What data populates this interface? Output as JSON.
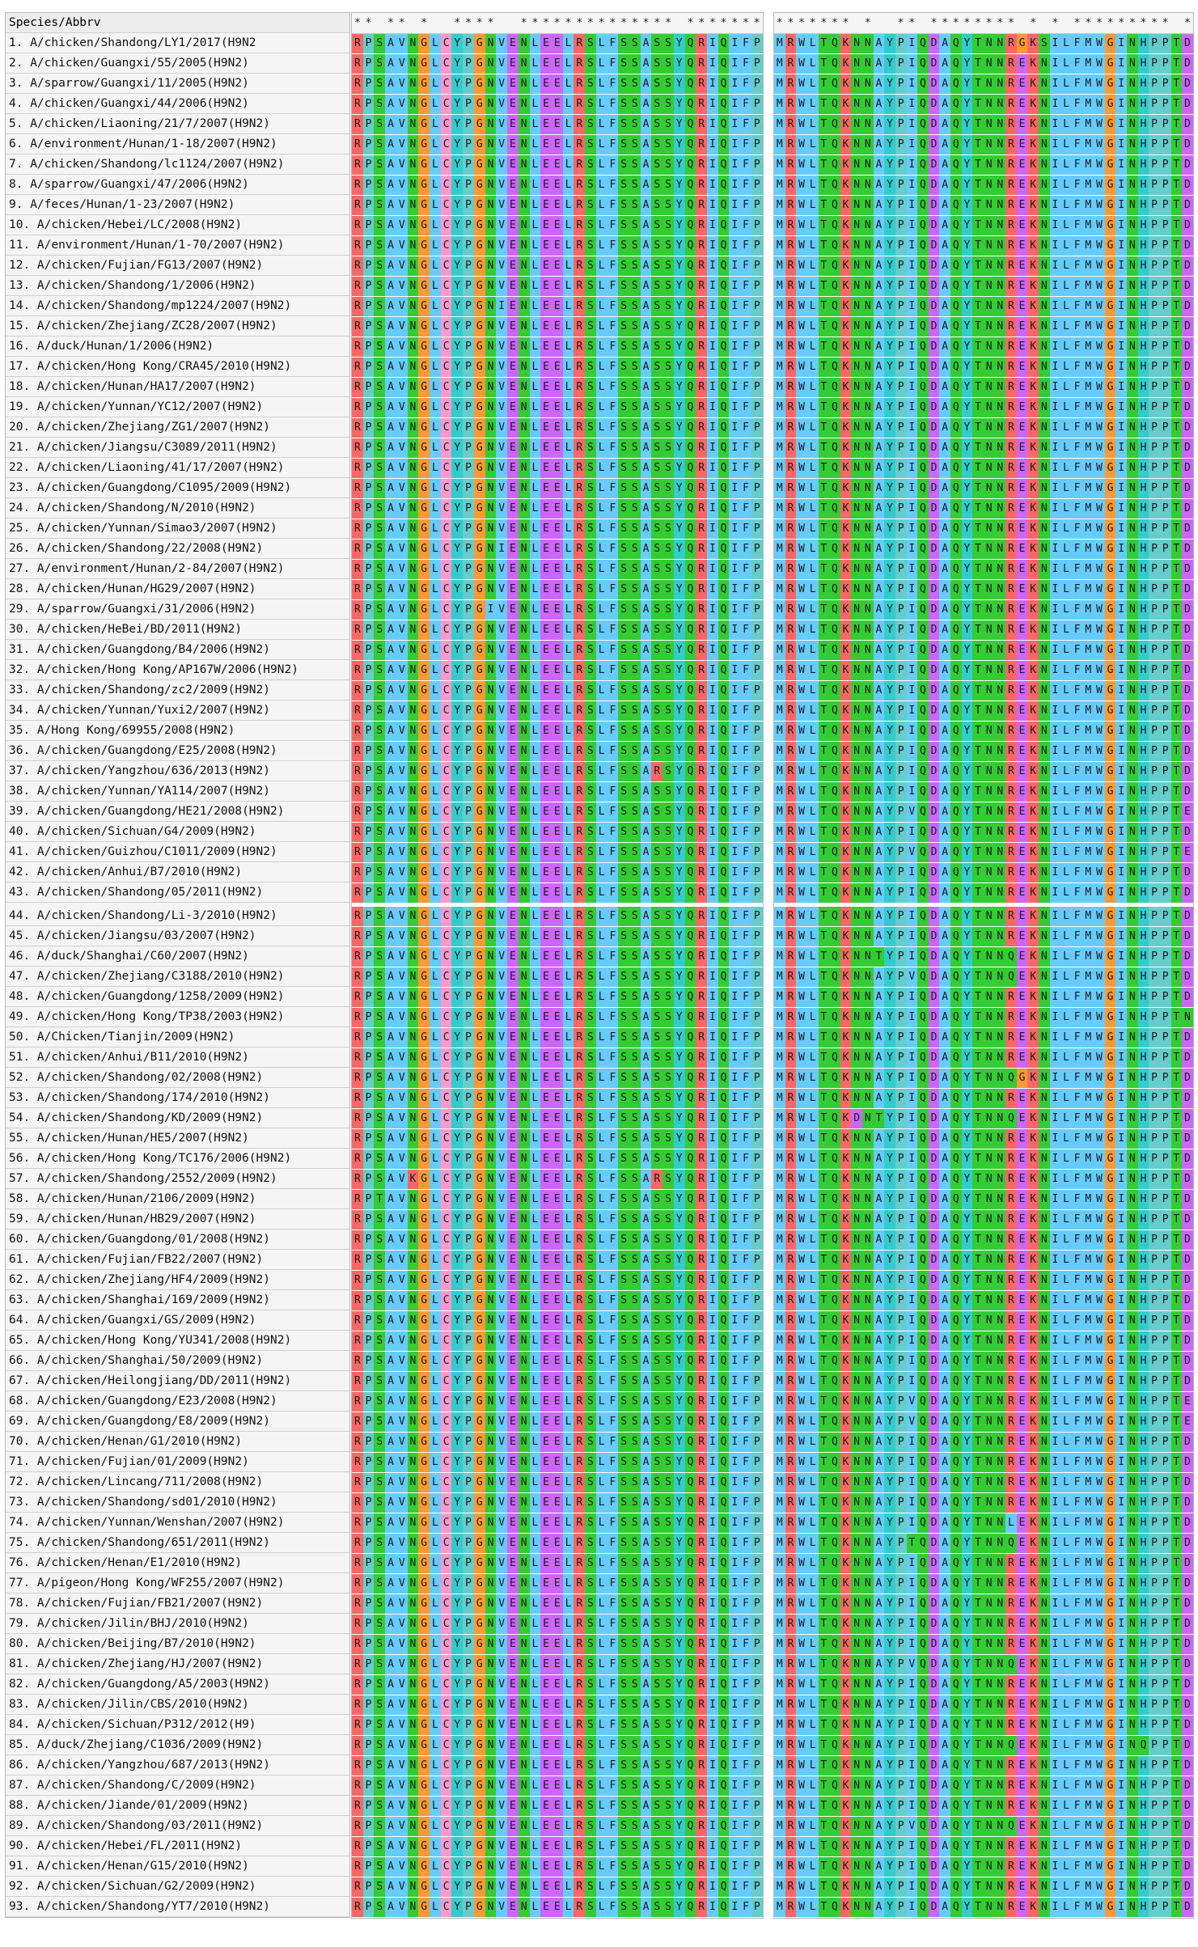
{
  "header": {
    "label": "Species/Abbrv",
    "conservation_a": "** ** *  ****  ************** *********",
    "conservation_b": "******* *  ** ******** * * ********* ***"
  },
  "alignment": {
    "region_a_consensus": "RPSAVNGLCYPGNVENLEELRSLFSSASSYQRIQIFP",
    "region_b_consensus": "MRWLTQKNNAYPIQDAQYTNNREKNILFMWGINHPPTD",
    "colors": {
      "R": "#ff6666",
      "P": "#66cccc",
      "S": "#33cc33",
      "A": "#66ccff",
      "V": "#66ccff",
      "N": "#33cc33",
      "G": "#ff9933",
      "L": "#66ccff",
      "C": "#ff99cc",
      "Y": "#33cccc",
      "E": "#cc66ff",
      "F": "#66ccff",
      "Q": "#33cc33",
      "I": "#66ccff",
      "M": "#66ccff",
      "W": "#66ccff",
      "T": "#33cc33",
      "K": "#ff6666",
      "D": "#cc66ff",
      "H": "#33cccc"
    }
  },
  "species": [
    "1.  A/chicken/Shandong/LY1/2017(H9N2",
    "2.  A/chicken/Guangxi/55/2005(H9N2)",
    "3.  A/sparrow/Guangxi/11/2005(H9N2)",
    "4.  A/chicken/Guangxi/44/2006(H9N2)",
    "5.  A/chicken/Liaoning/21/7/2007(H9N2)",
    "6.  A/environment/Hunan/1-18/2007(H9N2)",
    "7.  A/chicken/Shandong/lc1124/2007(H9N2)",
    "8.  A/sparrow/Guangxi/47/2006(H9N2)",
    "9.  A/feces/Hunan/1-23/2007(H9N2)",
    "10. A/chicken/Hebei/LC/2008(H9N2)",
    "11. A/environment/Hunan/1-70/2007(H9N2)",
    "12. A/chicken/Fujian/FG13/2007(H9N2)",
    "13. A/chicken/Shandong/1/2006(H9N2)",
    "14. A/chicken/Shandong/mp1224/2007(H9N2)",
    "15. A/chicken/Zhejiang/ZC28/2007(H9N2)",
    "16. A/duck/Hunan/1/2006(H9N2)",
    "17. A/chicken/Hong Kong/CRA45/2010(H9N2)",
    "18. A/chicken/Hunan/HA17/2007(H9N2)",
    "19. A/chicken/Yunnan/YC12/2007(H9N2)",
    "20. A/chicken/Zhejiang/ZG1/2007(H9N2)",
    "21. A/chicken/Jiangsu/C3089/2011(H9N2)",
    "22. A/chicken/Liaoning/41/17/2007(H9N2)",
    "23. A/chicken/Guangdong/C1095/2009(H9N2)",
    "24. A/chicken/Shandong/N/2010(H9N2)",
    "25. A/chicken/Yunnan/Simao3/2007(H9N2)",
    "26. A/chicken/Shandong/22/2008(H9N2)",
    "27. A/environment/Hunan/2-84/2007(H9N2)",
    "28. A/chicken/Hunan/HG29/2007(H9N2)",
    "29. A/sparrow/Guangxi/31/2006(H9N2)",
    "30. A/chicken/HeBei/BD/2011(H9N2)",
    "31. A/chicken/Guangdong/B4/2006(H9N2)",
    "32. A/chicken/Hong Kong/AP167W/2006(H9N2)",
    "33. A/chicken/Shandong/zc2/2009(H9N2)",
    "34. A/chicken/Yunnan/Yuxi2/2007(H9N2)",
    "35. A/Hong Kong/69955/2008(H9N2)",
    "36. A/chicken/Guangdong/E25/2008(H9N2)",
    "37. A/chicken/Yangzhou/636/2013(H9N2)",
    "38. A/chicken/Yunnan/YA114/2007(H9N2)",
    "39. A/chicken/Guangdong/HE21/2008(H9N2)",
    "40. A/chicken/Sichuan/G4/2009(H9N2)",
    "41. A/chicken/Guizhou/C1011/2009(H9N2)",
    "42. A/chicken/Anhui/B7/2010(H9N2)",
    "43. A/chicken/Shandong/05/2011(H9N2)",
    "44. A/chicken/Shandong/Li-3/2010(H9N2)",
    "45. A/chicken/Jiangsu/03/2007(H9N2)",
    "46. A/duck/Shanghai/C60/2007(H9N2)",
    "47. A/chicken/Zhejiang/C3188/2010(H9N2)",
    "48. A/chicken/Guangdong/1258/2009(H9N2)",
    "49. A/chicken/Hong Kong/TP38/2003(H9N2)",
    "50. A/Chicken/Tianjin/2009(H9N2)",
    "51. A/chicken/Anhui/B11/2010(H9N2)",
    "52. A/chicken/Shandong/02/2008(H9N2)",
    "53. A/chicken/Shandong/174/2010(H9N2)",
    "54. A/chicken/Shandong/KD/2009(H9N2)",
    "55. A/chicken/Hunan/HE5/2007(H9N2)",
    "56. A/chicken/Hong Kong/TC176/2006(H9N2)",
    "57. A/chicken/Shandong/2552/2009(H9N2)",
    "58. A/chicken/Hunan/2106/2009(H9N2)",
    "59. A/chicken/Hunan/HB29/2007(H9N2)",
    "60. A/chicken/Guangdong/01/2008(H9N2)",
    "61. A/chicken/Fujian/FB22/2007(H9N2)",
    "62. A/chicken/Zhejiang/HF4/2009(H9N2)",
    "63. A/chicken/Shanghai/169/2009(H9N2)",
    "64. A/chicken/Guangxi/GS/2009(H9N2)",
    "65. A/chicken/Hong Kong/YU341/2008(H9N2)",
    "66. A/chicken/Shanghai/50/2009(H9N2)",
    "67. A/chicken/Heilongjiang/DD/2011(H9N2)",
    "68. A/chicken/Guangdong/E23/2008(H9N2)",
    "69. A/chicken/Guangdong/E8/2009(H9N2)",
    "70. A/chicken/Henan/G1/2010(H9N2)",
    "71. A/chicken/Fujian/01/2009(H9N2)",
    "72. A/chicken/Lincang/711/2008(H9N2)",
    "73. A/chicken/Shandong/sd01/2010(H9N2)",
    "74. A/chicken/Yunnan/Wenshan/2007(H9N2)",
    "75. A/chicken/Shandong/651/2011(H9N2)",
    "76. A/chicken/Henan/E1/2010(H9N2)",
    "77. A/pigeon/Hong Kong/WF255/2007(H9N2)",
    "78. A/chicken/Fujian/FB21/2007(H9N2)",
    "79. A/chicken/Jilin/BHJ/2010(H9N2)",
    "80. A/chicken/Beijing/B7/2010(H9N2)",
    "81. A/chicken/Zhejiang/HJ/2007(H9N2)",
    "82. A/chicken/Guangdong/A5/2003(H9N2)",
    "83. A/chicken/Jilin/CBS/2010(H9N2)",
    "84. A/chicken/Sichuan/P312/2012(H9)",
    "85. A/duck/Zhejiang/C1036/2009(H9N2)",
    "86. A/chicken/Yangzhou/687/2013(H9N2)",
    "87. A/chicken/Shandong/C/2009(H9N2)",
    "88. A/chicken/Jiande/01/2009(H9N2)",
    "89. A/chicken/Shandong/03/2011(H9N2)",
    "90. A/chicken/Hebei/FL/2011(H9N2)",
    "91. A/chicken/Henan/G15/2010(H9N2)",
    "92. A/chicken/Sichuan/G2/2009(H9N2)",
    "93. A/chicken/Shandong/YT7/2010(H9N2)"
  ],
  "variants_a": {
    "14": "RPSAVNGLCYPGNIENLEELRSLFSSASSYQRIQIFP",
    "26": "RPSAVNGLCYPGNIENLEELRSLFSSASSYQRIQIFP",
    "29": "RPSAVNGLCYPGIVENLEELRSLFSSASSYQRIQIFP",
    "37": "RPSAVNGLCYPGNVENLEELRSLFSSARSYQRIQIFP",
    "57": "RPSAVKGLCYPGNVENLEELRSLFSSARSYQRIQIFP",
    "58": "RPTAVNGLCYPGNVENLEELRSLFSSASSYQRIQIFP",
    "81": "RPSAVNGLCYPGNVENLEELRSLFSSASSYQRIQIFP"
  },
  "variants_b": {
    "1": "MRWLTQKNNAYPIQDAQYTNNRGKSILFMWGINHPPTD",
    "39": "MRWLTQKNNAYPVQDAQYTNNREKNILFMWGINHPPTE",
    "41": "MRWLTQKNNAYPVQDAQYTNNREKNILFMWGINHPPTE",
    "46": "MRWLTQKNNTYPIQDAQYTNNQEKNILFMWGINHPPTD",
    "47": "MRWLTQKNNAYPVQDAQYTNNQEKNILFMWGINHPPTD",
    "49": "MRWLTQKNNAYPIQDAQYTNNREKNILFMWGINHPPTN",
    "52": "MRWLTQKNNAYPIQDAQYTNNQGKNILFMWGINHPPTD",
    "54": "MRWLTQKDNTYPIQDAQYTNNQEKNILFMWGINHPPTD",
    "68": "MRWLTQKNNAYPVQDAQYTNNREKNILFMWGINHPPTE",
    "69": "MRWLTQKNNAYPVQDAQYTNNREKNILFMWGINHPPTE",
    "74": "MRWLTQKNNAYPIQDAQYTNNLEKNILFMWGINHPPTD",
    "75": "MRWLTQKNNAYPTQDAQYTNNQEKNILFMWGINHPPTD",
    "81": "MRWLTQKNNAYPVQDAQYTNNQEKNILFMWGINHPPTD",
    "85": "MRWLTQKNNAYPIQDAQYTNNQEKNILFMWGINQPPTD",
    "89": "MRWLTQKNNAYPVQDAQYTNNQEKNILFMWGINHPPTD"
  }
}
